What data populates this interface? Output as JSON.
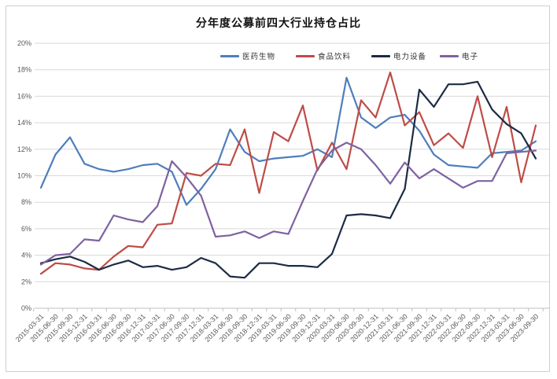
{
  "chart_data": {
    "type": "line",
    "title": "分年度公募前四大行业持仓占比",
    "x_categories": [
      "2015-03-31",
      "2015-06-30",
      "2015-09-30",
      "2015-12-31",
      "2016-03-31",
      "2016-06-30",
      "2016-09-30",
      "2016-12-31",
      "2017-03-31",
      "2017-06-30",
      "2017-09-30",
      "2017-12-31",
      "2018-03-31",
      "2018-06-30",
      "2018-09-30",
      "2018-12-31",
      "2019-03-31",
      "2019-06-30",
      "2019-09-30",
      "2019-12-31",
      "2020-03-31",
      "2020-06-30",
      "2020-09-30",
      "2020-12-31",
      "2021-03-31",
      "2021-06-30",
      "2021-09-30",
      "2021-12-31",
      "2022-03-31",
      "2022-06-30",
      "2022-09-30",
      "2022-12-31",
      "2023-03-31",
      "2023-06-30",
      "2023-09-30"
    ],
    "series": [
      {
        "key": "pharma-biotech",
        "name": "医药生物",
        "color": "#4d7ebb",
        "values": [
          9.1,
          11.6,
          12.9,
          10.9,
          10.5,
          10.3,
          10.5,
          10.8,
          10.9,
          10.3,
          7.8,
          9.0,
          10.5,
          13.5,
          11.8,
          11.1,
          11.3,
          11.4,
          11.5,
          12.0,
          11.4,
          17.4,
          14.4,
          13.6,
          14.4,
          14.6,
          13.4,
          11.6,
          10.8,
          10.7,
          10.6,
          11.7,
          11.8,
          11.9,
          12.6
        ]
      },
      {
        "key": "food-beverage",
        "name": "食品饮料",
        "color": "#bf4b47",
        "values": [
          2.6,
          3.4,
          3.3,
          3.0,
          2.9,
          3.9,
          4.7,
          4.6,
          6.3,
          6.4,
          10.2,
          10.0,
          10.9,
          10.8,
          13.5,
          8.7,
          13.3,
          12.6,
          15.3,
          10.4,
          12.5,
          10.5,
          15.7,
          14.4,
          17.8,
          13.8,
          14.8,
          12.3,
          13.2,
          12.1,
          16.0,
          11.4,
          15.2,
          9.5,
          13.8
        ]
      },
      {
        "key": "power-equipment",
        "name": "电力设备",
        "color": "#1c2b45",
        "values": [
          3.4,
          3.7,
          3.9,
          3.5,
          2.9,
          3.3,
          3.6,
          3.1,
          3.2,
          2.9,
          3.1,
          3.8,
          3.4,
          2.4,
          2.3,
          3.4,
          3.4,
          3.2,
          3.2,
          3.1,
          4.1,
          7.0,
          7.1,
          7.0,
          6.8,
          9.0,
          16.5,
          15.2,
          16.9,
          16.9,
          17.1,
          15.0,
          13.9,
          13.2,
          11.3
        ]
      },
      {
        "key": "electronics",
        "name": "电子",
        "color": "#7e62a1",
        "values": [
          3.3,
          4.0,
          4.1,
          5.2,
          5.1,
          7.0,
          6.7,
          6.5,
          7.7,
          11.1,
          9.9,
          8.5,
          5.4,
          5.5,
          5.8,
          5.3,
          5.8,
          5.6,
          8.1,
          10.5,
          11.9,
          12.5,
          12.0,
          10.8,
          9.4,
          11.0,
          9.8,
          10.5,
          9.8,
          9.1,
          9.6,
          9.6,
          11.7,
          11.8,
          11.9
        ]
      }
    ],
    "y_axis": {
      "min": 0,
      "max": 20,
      "step": 2,
      "labels": [
        "0%",
        "2%",
        "4%",
        "6%",
        "8%",
        "10%",
        "12%",
        "14%",
        "16%",
        "18%",
        "20%"
      ]
    },
    "grid": true,
    "legend_position": "top-center"
  }
}
